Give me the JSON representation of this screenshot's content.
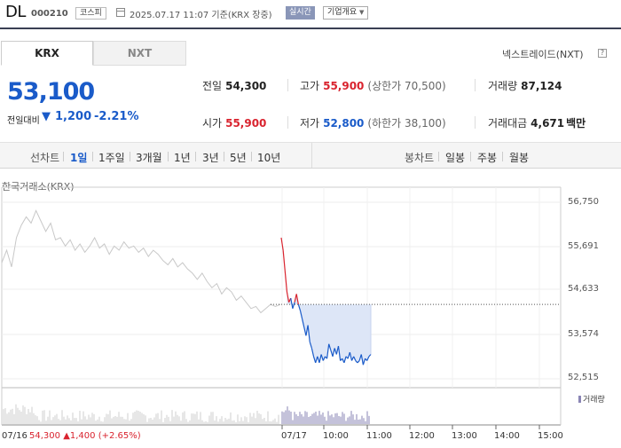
{
  "header": {
    "stock_name": "DL",
    "stock_code": "000210",
    "market": "코스피",
    "datetime": "2025.07.17 11:07 기준(KRX 장중)",
    "realtime_label": "실시간",
    "corp_info_label": "기업개요"
  },
  "tabs": {
    "krx": "KRX",
    "nxt": "NXT"
  },
  "nxt_link": "넥스트레이드(NXT)",
  "help_glyph": "?",
  "price": {
    "current": "53,100",
    "change_label": "전일대비",
    "change_arrow": "▼",
    "change_value": "1,200",
    "change_pct": "-2.21%"
  },
  "stats": {
    "prev_close": {
      "label": "전일",
      "value": "54,300"
    },
    "high": {
      "label": "고가",
      "value": "55,900",
      "sub": "(상한가 70,500)"
    },
    "volume": {
      "label": "거래량",
      "value": "87,124"
    },
    "open": {
      "label": "시가",
      "value": "55,900"
    },
    "low": {
      "label": "저가",
      "value": "52,800",
      "sub": "(하한가 38,100)"
    },
    "amount": {
      "label": "거래대금",
      "value": "4,671",
      "unit": "백만"
    }
  },
  "period": {
    "line_label": "선차트",
    "line_options": [
      "1일",
      "1주일",
      "3개월",
      "1년",
      "3년",
      "5년",
      "10년"
    ],
    "selected": "1일",
    "candle_label": "봉차트",
    "candle_options": [
      "일봉",
      "주봉",
      "월봉"
    ]
  },
  "chart_label": "한국거래소(KRX)",
  "colors": {
    "up": "#d9232e",
    "down": "#1a5bc9",
    "prev_day": "#c8c8c8",
    "fill": "#dde6f7",
    "volume": "#8a85b5"
  },
  "chart_data": {
    "type": "line",
    "ylim": [
      52515,
      56750
    ],
    "y_ticks": [
      "56,750",
      "55,691",
      "54,633",
      "53,574",
      "52,515"
    ],
    "x_ticks": [
      "07/16",
      "07/17",
      "10:00",
      "11:00",
      "12:00",
      "13:00",
      "14:00",
      "15:00"
    ],
    "reference_price": 54300,
    "prev_day_series": [
      55300,
      55600,
      55200,
      55900,
      56200,
      56400,
      56250,
      56550,
      56300,
      56050,
      56250,
      55850,
      55900,
      55700,
      55850,
      55600,
      55750,
      55550,
      55700,
      55900,
      55650,
      55750,
      55500,
      55700,
      55600,
      55800,
      55650,
      55700,
      55550,
      55650,
      55450,
      55600,
      55500,
      55350,
      55250,
      55400,
      55200,
      55300,
      55150,
      55050,
      54900,
      55050,
      54850,
      54700,
      54800,
      54550,
      54700,
      54600,
      54400,
      54500,
      54350,
      54200,
      54250,
      54100,
      54200,
      54300,
      54250,
      54300
    ],
    "today_series": [
      55900,
      55600,
      55100,
      54600,
      54350,
      54450,
      54200,
      54350,
      54550,
      54300,
      54150,
      53950,
      53750,
      53550,
      53800,
      53400,
      53250,
      53050,
      52900,
      53050,
      52900,
      53100,
      52950,
      53050,
      53000,
      53350,
      53200,
      53050,
      53250,
      53100,
      53300,
      52950,
      53000,
      52900,
      53050,
      53000,
      53150,
      52950,
      53050,
      52950,
      52900,
      52950,
      53100,
      52850,
      53000,
      52950,
      53050,
      53100
    ]
  },
  "volume_legend": "거래량",
  "prev_day_summary": {
    "price": "54,300",
    "arrow": "▲",
    "change": "1,400",
    "pct": "(+2.65%)"
  }
}
